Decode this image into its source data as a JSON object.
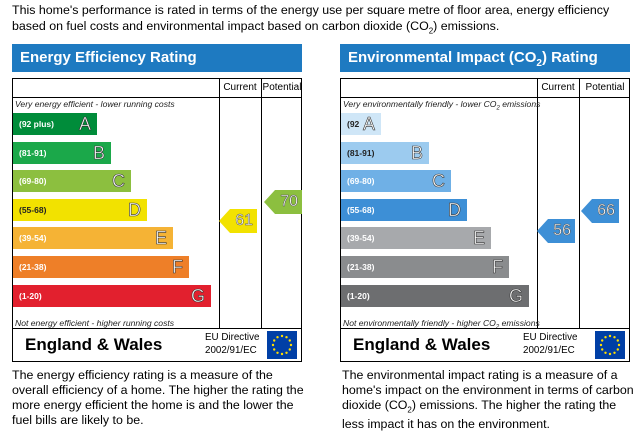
{
  "intro": {
    "text_a": "This home's performance is rated in terms of the energy use per square metre of floor area, energy efficiency based on fuel costs and environmental impact based on carbon dioxide (CO",
    "sub": "2",
    "text_b": ") emissions."
  },
  "energy": {
    "title": "Energy Efficiency Rating",
    "current_header": "Current",
    "potential_header": "Potential",
    "top_note": "Very energy efficient - lower running costs",
    "bottom_note": "Not energy efficient - higher running costs",
    "bands": [
      {
        "range": "(92 plus)",
        "letter": "A",
        "color": "#008c3a"
      },
      {
        "range": "(81-91)",
        "letter": "B",
        "color": "#1ba84a"
      },
      {
        "range": "(69-80)",
        "letter": "C",
        "color": "#8cbf3f"
      },
      {
        "range": "(55-68)",
        "letter": "D",
        "color": "#f2e200"
      },
      {
        "range": "(39-54)",
        "letter": "E",
        "color": "#f5b335"
      },
      {
        "range": "(21-38)",
        "letter": "F",
        "color": "#ee7f28"
      },
      {
        "range": "(1-20)",
        "letter": "G",
        "color": "#e2202e"
      }
    ],
    "current": {
      "value": "61",
      "color": "#f2e200"
    },
    "potential": {
      "value": "70",
      "color": "#8cbf3f"
    },
    "footer_region": "England & Wales",
    "eu_line1": "EU Directive",
    "eu_line2": "2002/91/EC",
    "description": "The energy efficiency rating is a measure of the overall efficiency of a home. The higher the rating the more energy efficient the home is and the lower the fuel bills are likely to be."
  },
  "environment": {
    "title_a": "Environmental Impact (CO",
    "title_sub": "2",
    "title_b": ") Rating",
    "current_header": "Current",
    "potential_header": "Potential",
    "top_note_a": "Very environmentally friendly - lower  CO",
    "top_note_sub": "2",
    "top_note_b": " emissions",
    "bottom_note_a": "Not environmentally friendly - higher  CO",
    "bottom_note_sub": "2",
    "bottom_note_b": " emissions",
    "bands": [
      {
        "range": "(92 plus)",
        "letter": "A",
        "color": "#cfe6f7"
      },
      {
        "range": "(81-91)",
        "letter": "B",
        "color": "#9ccbef"
      },
      {
        "range": "(69-80)",
        "letter": "C",
        "color": "#6fb0e6"
      },
      {
        "range": "(55-68)",
        "letter": "D",
        "color": "#3d8fd6"
      },
      {
        "range": "(39-54)",
        "letter": "E",
        "color": "#a7a9ac"
      },
      {
        "range": "(21-38)",
        "letter": "F",
        "color": "#8a8c8e"
      },
      {
        "range": "(1-20)",
        "letter": "G",
        "color": "#6d6e70"
      }
    ],
    "current": {
      "value": "56",
      "color": "#3d8fd6"
    },
    "potential": {
      "value": "66",
      "color": "#3d8fd6"
    },
    "footer_region": "England & Wales",
    "eu_line1": "EU Directive",
    "eu_line2": "2002/91/EC",
    "description_a": "The environmental impact rating is a measure of a home's impact on the environment in terms of carbon dioxide (CO",
    "description_sub": "2",
    "description_b": ") emissions. The higher the rating the less impact it has on the environment."
  }
}
